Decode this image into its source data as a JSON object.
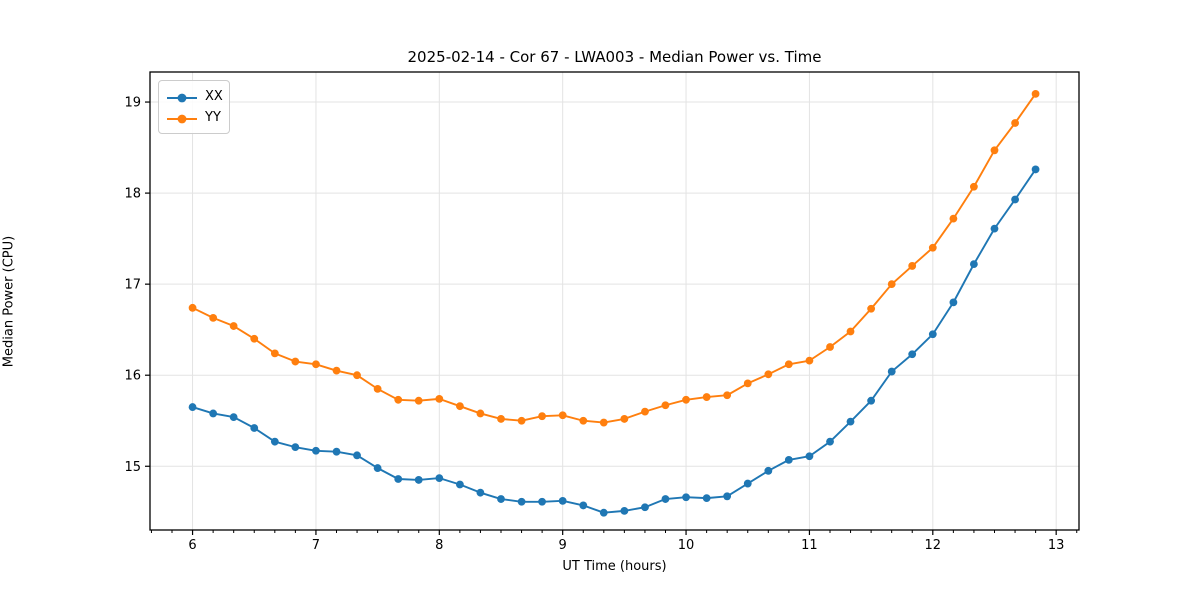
{
  "figure": {
    "title": "2025-02-14 - Cor 67 - LWA003 - Median Power vs. Time",
    "xlabel": "UT Time (hours)",
    "ylabel": "Median Power (CPU)",
    "background_color": "#ffffff",
    "grid_color": "#e3e3e3",
    "spine_color": "#000000"
  },
  "legend": {
    "position": "upper left",
    "items": [
      {
        "label": "XX",
        "color": "#1f77b4"
      },
      {
        "label": "YY",
        "color": "#ff7f0e"
      }
    ]
  },
  "chart_data": {
    "type": "line",
    "title": "2025-02-14 - Cor 67 - LWA003 - Median Power vs. Time",
    "xlabel": "UT Time (hours)",
    "ylabel": "Median Power (CPU)",
    "xlim": [
      5.655,
      13.185
    ],
    "ylim": [
      14.3,
      19.33
    ],
    "x_ticks": [
      6,
      7,
      8,
      9,
      10,
      11,
      12,
      13
    ],
    "x_tick_labels": [
      "6",
      "7",
      "8",
      "9",
      "10",
      "11",
      "12",
      "13"
    ],
    "x_minor_tick_step": 0.16667,
    "y_ticks": [
      15,
      16,
      17,
      18,
      19
    ],
    "y_tick_labels": [
      "15",
      "16",
      "17",
      "18",
      "19"
    ],
    "grid": true,
    "legend_position": "upper left",
    "x": [
      6.0,
      6.167,
      6.333,
      6.5,
      6.667,
      6.833,
      7.0,
      7.167,
      7.333,
      7.5,
      7.667,
      7.833,
      8.0,
      8.167,
      8.333,
      8.5,
      8.667,
      8.833,
      9.0,
      9.167,
      9.333,
      9.5,
      9.667,
      9.833,
      10.0,
      10.167,
      10.333,
      10.5,
      10.667,
      10.833,
      11.0,
      11.167,
      11.333,
      11.5,
      11.667,
      11.833,
      12.0,
      12.167,
      12.333,
      12.5,
      12.667,
      12.833
    ],
    "series": [
      {
        "name": "XX",
        "color": "#1f77b4",
        "marker": "circle",
        "values": [
          15.65,
          15.58,
          15.54,
          15.42,
          15.27,
          15.21,
          15.17,
          15.16,
          15.12,
          14.98,
          14.86,
          14.85,
          14.87,
          14.8,
          14.71,
          14.64,
          14.61,
          14.61,
          14.62,
          14.57,
          14.49,
          14.51,
          14.55,
          14.64,
          14.66,
          14.65,
          14.67,
          14.81,
          14.95,
          15.07,
          15.11,
          15.27,
          15.49,
          15.72,
          16.04,
          16.23,
          16.45,
          16.8,
          17.22,
          17.61,
          17.93,
          18.26
        ]
      },
      {
        "name": "YY",
        "color": "#ff7f0e",
        "marker": "circle",
        "values": [
          16.74,
          16.63,
          16.54,
          16.4,
          16.24,
          16.15,
          16.12,
          16.05,
          16.0,
          15.85,
          15.73,
          15.72,
          15.74,
          15.66,
          15.58,
          15.52,
          15.5,
          15.55,
          15.56,
          15.5,
          15.48,
          15.52,
          15.6,
          15.67,
          15.73,
          15.76,
          15.78,
          15.91,
          16.01,
          16.12,
          16.16,
          16.31,
          16.48,
          16.73,
          17.0,
          17.2,
          17.4,
          17.72,
          18.07,
          18.47,
          18.77,
          19.09
        ]
      }
    ]
  }
}
